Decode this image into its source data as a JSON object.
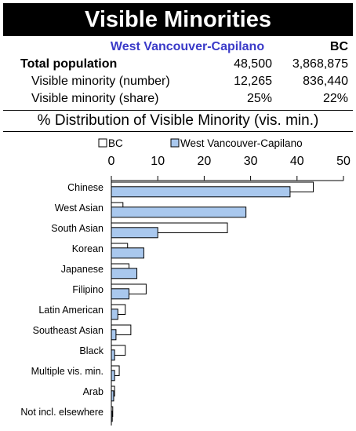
{
  "title": "Visible Minorities",
  "summary": {
    "header_region": "West Vancouver-Capilano",
    "header_bc": "BC",
    "rows": [
      {
        "label": "Total population",
        "region": "48,500",
        "bc": "3,868,875"
      },
      {
        "label": "Visible minority (number)",
        "region": "12,265",
        "bc": "836,440"
      },
      {
        "label": "Visible minority (share)",
        "region": "25%",
        "bc": "22%"
      }
    ]
  },
  "subtitle": "% Distribution of Visible Minority (vis. min.)",
  "colors": {
    "region": "#a9c8ee",
    "bc": "#ffffff",
    "outline": "#000000"
  },
  "chart_data": {
    "type": "bar",
    "orientation": "horizontal",
    "categories": [
      "Chinese",
      "West Asian",
      "South Asian",
      "Korean",
      "Japanese",
      "Filipino",
      "Latin American",
      "Southeast Asian",
      "Black",
      "Multiple vis. min.",
      "Arab",
      "Not incl. elsewhere"
    ],
    "series": [
      {
        "name": "BC",
        "values": [
          43.5,
          2.5,
          25.0,
          3.5,
          3.8,
          7.5,
          3.0,
          4.2,
          3.0,
          1.7,
          0.7,
          0.3
        ]
      },
      {
        "name": "West Vancouver-Capilano",
        "values": [
          38.5,
          29.0,
          10.0,
          7.0,
          5.5,
          3.8,
          1.4,
          1.0,
          0.7,
          0.7,
          0.5,
          0.2
        ]
      }
    ],
    "xlim": [
      0,
      50
    ],
    "xticks": [
      "0",
      "10",
      "20",
      "30",
      "40",
      "50"
    ],
    "legend_position": "top",
    "grid": false
  }
}
